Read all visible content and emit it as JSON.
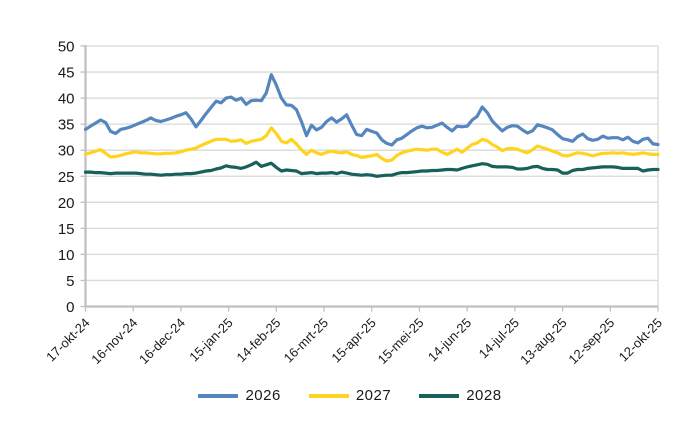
{
  "chart_data": {
    "type": "line",
    "title": "",
    "xlabel": "",
    "ylabel": "",
    "ylim": [
      0,
      50
    ],
    "y_tick_step": 5,
    "y_tick_labels": [
      "0",
      "5",
      "10",
      "15",
      "20",
      "25",
      "30",
      "35",
      "40",
      "45",
      "50"
    ],
    "x_tick_labels": [
      "17-okt-24",
      "16-nov-24",
      "16-dec-24",
      "15-jan-25",
      "14-feb-25",
      "16-mrt-25",
      "15-apr-25",
      "15-mei-25",
      "14-jun-25",
      "14-jul-25",
      "13-aug-25",
      "12-sep-25",
      "12-okt-25"
    ],
    "grid": "horizontal",
    "legend_position": "bottom",
    "axis_color": "#BFBFBF",
    "grid_color": "#D9D9D9",
    "text_color": "#1A1A1A",
    "series": [
      {
        "name": "2026",
        "color": "#5586BF",
        "values": [
          34.0,
          34.6,
          35.2,
          35.8,
          35.3,
          33.6,
          33.2,
          34.0,
          34.2,
          34.5,
          34.9,
          35.3,
          35.7,
          36.2,
          35.7,
          35.5,
          35.8,
          36.1,
          36.5,
          36.8,
          37.2,
          36.0,
          34.5,
          35.7,
          37.0,
          38.2,
          39.4,
          39.1,
          40.0,
          40.2,
          39.6,
          40.0,
          38.8,
          39.5,
          39.6,
          39.5,
          41.0,
          44.5,
          42.5,
          40.0,
          38.7,
          38.6,
          37.8,
          35.5,
          32.8,
          34.8,
          33.9,
          34.4,
          35.5,
          36.2,
          35.4,
          36.0,
          36.8,
          34.8,
          33.0,
          32.8,
          34.0,
          33.6,
          33.3,
          32.0,
          31.3,
          31.0,
          32.0,
          32.3,
          33.0,
          33.7,
          34.3,
          34.6,
          34.3,
          34.4,
          34.8,
          35.2,
          34.4,
          33.7,
          34.6,
          34.5,
          34.6,
          35.8,
          36.5,
          38.3,
          37.2,
          35.6,
          34.6,
          33.7,
          34.4,
          34.7,
          34.6,
          33.9,
          33.3,
          33.7,
          34.9,
          34.6,
          34.3,
          33.9,
          33.0,
          32.2,
          32.0,
          31.7,
          32.6,
          33.1,
          32.2,
          31.9,
          32.1,
          32.7,
          32.3,
          32.4,
          32.4,
          32.0,
          32.5,
          31.7,
          31.4,
          32.1,
          32.3,
          31.2,
          31.1
        ]
      },
      {
        "name": "2027",
        "color": "#FFD41F",
        "values": [
          29.2,
          29.5,
          29.8,
          30.1,
          29.4,
          28.7,
          28.8,
          29.0,
          29.3,
          29.5,
          29.7,
          29.5,
          29.5,
          29.4,
          29.3,
          29.3,
          29.4,
          29.4,
          29.5,
          29.7,
          30.0,
          30.2,
          30.4,
          30.9,
          31.3,
          31.7,
          32.1,
          32.1,
          32.1,
          31.7,
          31.8,
          32.0,
          31.3,
          31.7,
          31.9,
          32.1,
          32.8,
          34.3,
          33.2,
          31.7,
          31.4,
          32.1,
          31.2,
          30.1,
          29.2,
          30.0,
          29.5,
          29.2,
          29.6,
          29.8,
          29.6,
          29.5,
          29.7,
          29.2,
          29.0,
          28.6,
          28.8,
          28.9,
          29.2,
          28.4,
          27.9,
          28.1,
          29.0,
          29.5,
          29.8,
          30.0,
          30.2,
          30.1,
          30.0,
          30.2,
          30.2,
          29.6,
          29.2,
          29.7,
          30.2,
          29.6,
          30.4,
          31.1,
          31.4,
          32.1,
          31.8,
          31.1,
          30.6,
          29.9,
          30.3,
          30.3,
          30.2,
          29.8,
          29.5,
          30.1,
          30.8,
          30.5,
          30.2,
          29.8,
          29.5,
          29.0,
          28.9,
          29.2,
          29.5,
          29.4,
          29.2,
          28.9,
          29.2,
          29.4,
          29.4,
          29.5,
          29.4,
          29.5,
          29.3,
          29.2,
          29.3,
          29.5,
          29.3,
          29.2,
          29.2
        ]
      },
      {
        "name": "2028",
        "color": "#17605B",
        "values": [
          25.8,
          25.8,
          25.7,
          25.7,
          25.6,
          25.5,
          25.6,
          25.6,
          25.6,
          25.6,
          25.6,
          25.5,
          25.4,
          25.4,
          25.3,
          25.2,
          25.3,
          25.3,
          25.4,
          25.4,
          25.5,
          25.5,
          25.6,
          25.8,
          26.0,
          26.1,
          26.4,
          26.6,
          27.0,
          26.8,
          26.7,
          26.5,
          26.8,
          27.2,
          27.7,
          26.9,
          27.2,
          27.5,
          26.7,
          26.0,
          26.2,
          26.1,
          26.0,
          25.5,
          25.6,
          25.7,
          25.5,
          25.6,
          25.6,
          25.7,
          25.5,
          25.8,
          25.6,
          25.4,
          25.3,
          25.2,
          25.3,
          25.2,
          25.0,
          25.1,
          25.2,
          25.2,
          25.5,
          25.7,
          25.7,
          25.8,
          25.9,
          26.0,
          26.0,
          26.1,
          26.1,
          26.2,
          26.3,
          26.3,
          26.2,
          26.5,
          26.8,
          27.0,
          27.2,
          27.4,
          27.3,
          26.9,
          26.8,
          26.8,
          26.8,
          26.7,
          26.4,
          26.4,
          26.5,
          26.8,
          26.9,
          26.5,
          26.3,
          26.3,
          26.2,
          25.6,
          25.6,
          26.1,
          26.3,
          26.3,
          26.5,
          26.6,
          26.7,
          26.8,
          26.8,
          26.8,
          26.7,
          26.5,
          26.5,
          26.5,
          26.5,
          26.0,
          26.2,
          26.3,
          26.3
        ]
      }
    ]
  }
}
